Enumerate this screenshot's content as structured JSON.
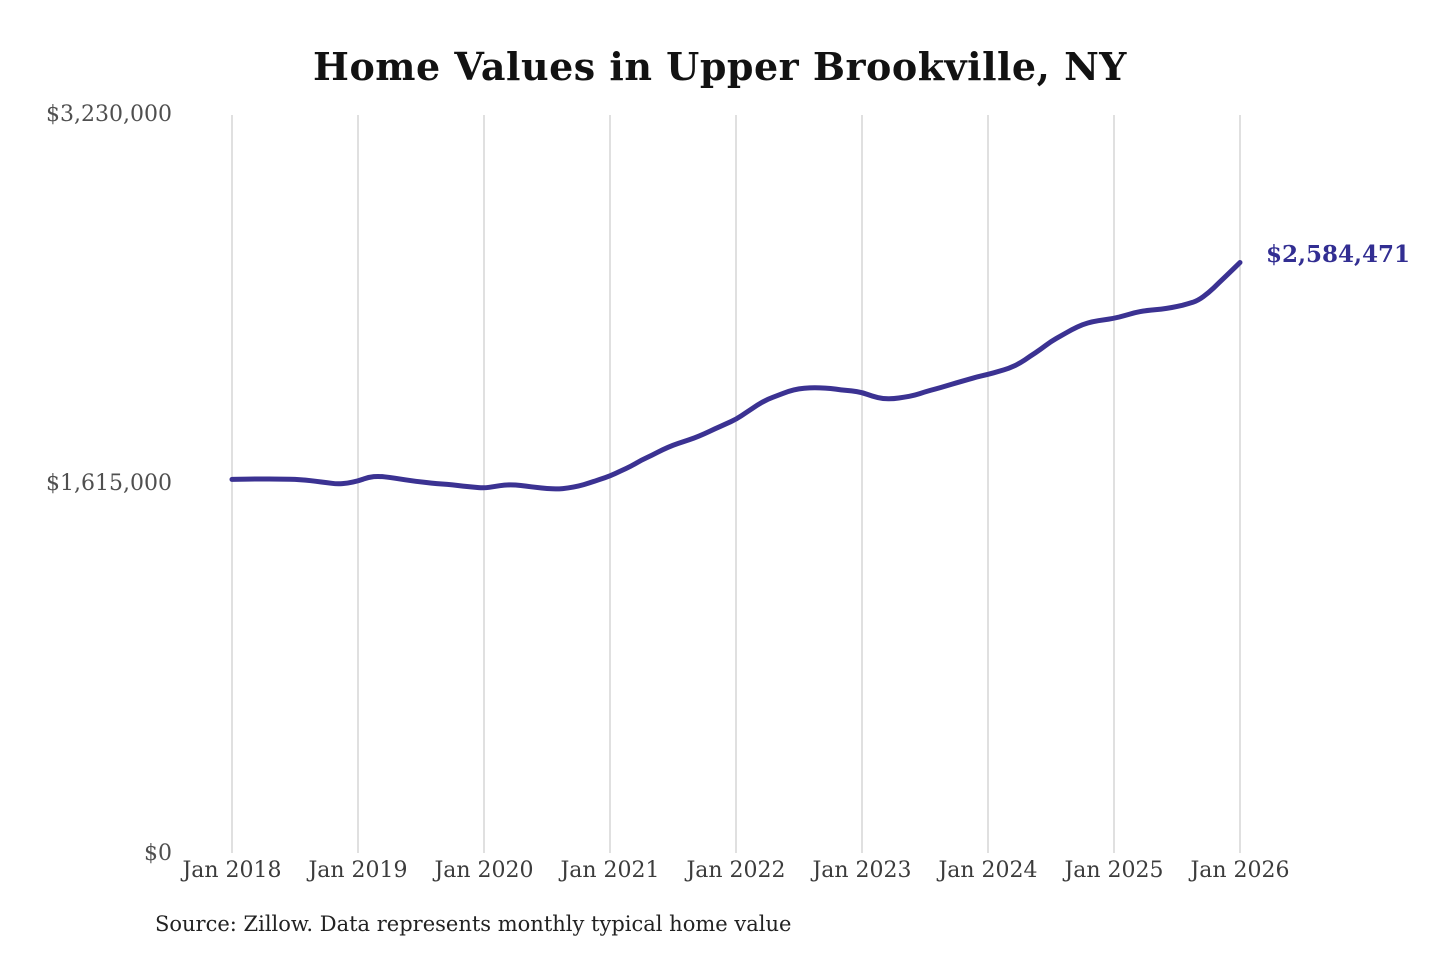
{
  "chart_data": {
    "type": "line",
    "title": "Home Values in Upper Brookville, NY",
    "source_note": "Source: Zillow. Data represents monthly typical home value",
    "series_name": "Monthly typical home value",
    "frequency": "monthly",
    "x_monthly_start": "2018-01",
    "x_monthly_end": "2026-01",
    "x_labels": [
      "Jan 2018",
      "Jan 2019",
      "Jan 2020",
      "Jan 2021",
      "Jan 2022",
      "Jan 2023",
      "Jan 2024",
      "Jan 2025",
      "Jan 2026"
    ],
    "ylim": [
      0,
      3230000
    ],
    "y_ticks": [
      3230000,
      1615000,
      0
    ],
    "y_tick_labels": [
      "$3,230,000",
      "$1,615,000",
      "$0"
    ],
    "end_label": "$2,584,471",
    "end_value": 2584471,
    "line_color": "#3b3292",
    "grid_color": "#cccccc",
    "grid": "vertical-only",
    "legend": "none",
    "values": [
      1635000,
      1636000,
      1637000,
      1637000,
      1637000,
      1636000,
      1635000,
      1632000,
      1627000,
      1621000,
      1615000,
      1618000,
      1628000,
      1645000,
      1649000,
      1644000,
      1637000,
      1630000,
      1624000,
      1619000,
      1615000,
      1611000,
      1606000,
      1602000,
      1597000,
      1604000,
      1611000,
      1611000,
      1606000,
      1600000,
      1595000,
      1593000,
      1597000,
      1606000,
      1619000,
      1635000,
      1650000,
      1672000,
      1693000,
      1720000,
      1741000,
      1765000,
      1785000,
      1800000,
      1816000,
      1835000,
      1857000,
      1877000,
      1898000,
      1929000,
      1960000,
      1986000,
      2003000,
      2021000,
      2032000,
      2036000,
      2036000,
      2034000,
      2027000,
      2023000,
      2016000,
      1999000,
      1988000,
      1988000,
      1995000,
      2003000,
      2018000,
      2031000,
      2044000,
      2058000,
      2071000,
      2084000,
      2095000,
      2108000,
      2121000,
      2143000,
      2174000,
      2204000,
      2239000,
      2265000,
      2291000,
      2313000,
      2326000,
      2333000,
      2340000,
      2352000,
      2365000,
      2374000,
      2378000,
      2383000,
      2392000,
      2403000,
      2418000,
      2452000,
      2496000,
      2540000,
      2584471
    ]
  }
}
